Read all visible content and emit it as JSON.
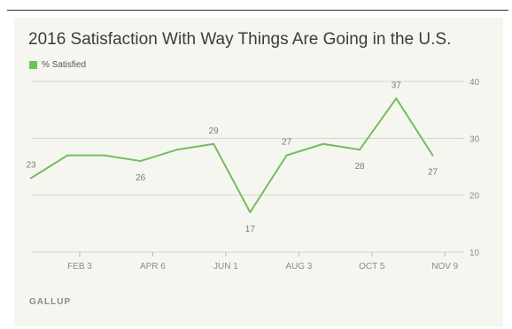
{
  "chart_data": {
    "type": "line",
    "title": "2016 Satisfaction With Way Things Are Going in the U.S.",
    "source": "GALLUP",
    "color": "#6fc15a",
    "ylim": [
      10,
      40
    ],
    "yticks": [
      10,
      20,
      30,
      40
    ],
    "grid": true,
    "legend_position": "top-left",
    "xtick_labels": [
      {
        "label": "FEB 3",
        "index": 2
      },
      {
        "label": "APR 6",
        "index": 5
      },
      {
        "label": "JUN 1",
        "index": 8
      },
      {
        "label": "AUG 3",
        "index": 11
      },
      {
        "label": "OCT 5",
        "index": 14
      },
      {
        "label": "NOV 9",
        "index": 17
      }
    ],
    "series": [
      {
        "name": "% Satisfied",
        "values": [
          23,
          27,
          27,
          26,
          28,
          29,
          17,
          27,
          29,
          28,
          37,
          27
        ],
        "positions": [
          0,
          1.5,
          3,
          4.5,
          6,
          7.5,
          9,
          10.5,
          12,
          13.5,
          15,
          16.5
        ]
      }
    ],
    "data_labels": [
      {
        "index": 0,
        "text": "23",
        "placement": "above"
      },
      {
        "index": 3,
        "text": "26",
        "placement": "below"
      },
      {
        "index": 5,
        "text": "29",
        "placement": "above"
      },
      {
        "index": 6,
        "text": "17",
        "placement": "below"
      },
      {
        "index": 7,
        "text": "27",
        "placement": "above"
      },
      {
        "index": 9,
        "text": "28",
        "placement": "below"
      },
      {
        "index": 10,
        "text": "37",
        "placement": "above"
      },
      {
        "index": 11,
        "text": "27",
        "placement": "below"
      }
    ]
  }
}
